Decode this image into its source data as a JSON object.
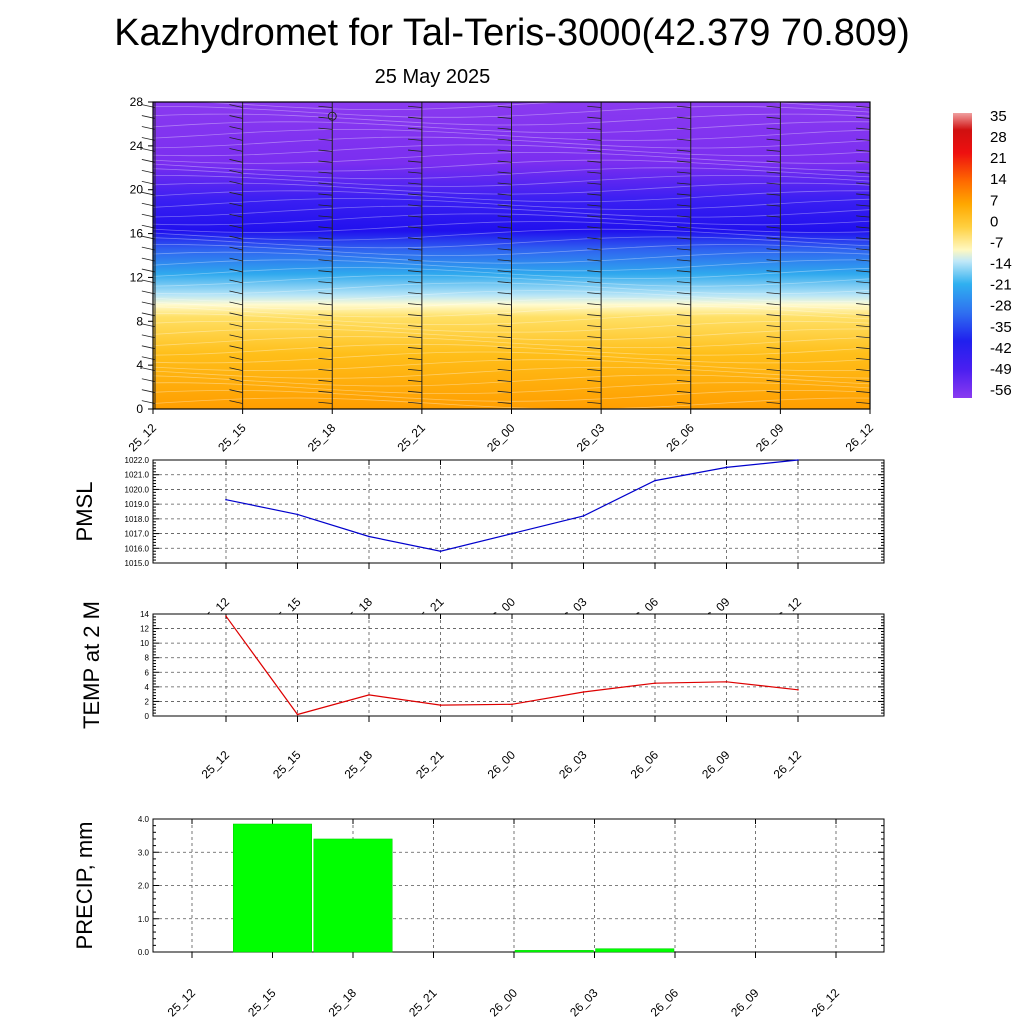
{
  "title": "Kazhydromet for Tal-Teris-3000(42.379 70.809)",
  "subtitle": "25 May 2025",
  "colorbar": {
    "labels": [
      "35",
      "28",
      "21",
      "14",
      "7",
      "0",
      "-7",
      "-14",
      "-21",
      "-28",
      "-35",
      "-42",
      "-49",
      "-56"
    ]
  },
  "chart_data": [
    {
      "type": "heatmap",
      "x": [
        "25_12",
        "25_15",
        "25_18",
        "25_21",
        "26_00",
        "26_03",
        "26_06",
        "26_09",
        "26_12"
      ],
      "y_ticks": [
        0,
        4,
        8,
        12,
        16,
        20,
        24,
        28
      ],
      "ylim": [
        0,
        28
      ],
      "bands": [
        {
          "from": 0,
          "to": 10,
          "value_range": [
            7,
            -7
          ],
          "color": "#ffae00"
        },
        {
          "from": 10,
          "to": 15,
          "value_range": [
            -14,
            -35
          ],
          "color": "#3aa8ee"
        },
        {
          "from": 15,
          "to": 22,
          "value_range": [
            -42,
            -56
          ],
          "color": "#2b1cf0"
        },
        {
          "from": 22,
          "to": 28,
          "value_range": [
            -56,
            -60
          ],
          "color": "#7d2ff0"
        }
      ]
    },
    {
      "type": "line",
      "ylabel": "PMSL",
      "x": [
        "25_12",
        "25_15",
        "25_18",
        "25_21",
        "26_00",
        "26_03",
        "26_06",
        "26_09",
        "26_12"
      ],
      "y_ticks": [
        "1015.0",
        "1016.0",
        "1017.0",
        "1018.0",
        "1019.0",
        "1020.0",
        "1021.0",
        "1022.0"
      ],
      "ylim": [
        1015,
        1022
      ],
      "series": [
        {
          "values": [
            1019.3,
            1018.3,
            1016.8,
            1015.8,
            1017.0,
            1018.2,
            1020.6,
            1021.5,
            1022.0
          ],
          "color": "#0000cc"
        }
      ]
    },
    {
      "type": "line",
      "ylabel": "TEMP at 2 M",
      "x": [
        "25_12",
        "25_15",
        "25_18",
        "25_21",
        "26_00",
        "26_03",
        "26_06",
        "26_09",
        "26_12"
      ],
      "y_ticks": [
        "0",
        "2",
        "4",
        "6",
        "8",
        "10",
        "12",
        "14"
      ],
      "ylim": [
        0,
        14
      ],
      "series": [
        {
          "values": [
            13.7,
            0.2,
            2.9,
            1.5,
            1.6,
            3.3,
            4.5,
            4.7,
            3.6
          ],
          "color": "#dd0000"
        }
      ]
    },
    {
      "type": "bar",
      "ylabel": "PRECIP, mm",
      "x": [
        "25_12",
        "25_15",
        "25_18",
        "25_21",
        "26_00",
        "26_03",
        "26_06",
        "26_09",
        "26_12"
      ],
      "y_ticks": [
        "0.0",
        "1.0",
        "2.0",
        "3.0",
        "4.0"
      ],
      "ylim": [
        0,
        4
      ],
      "bars": [
        {
          "from": 0.5,
          "to": 1.5,
          "value": 3.85
        },
        {
          "from": 1.5,
          "to": 2.5,
          "value": 3.4
        },
        {
          "from": 4.0,
          "to": 5.0,
          "value": 0.05
        },
        {
          "from": 5.0,
          "to": 6.0,
          "value": 0.1
        }
      ],
      "color": "#00ff00"
    }
  ]
}
